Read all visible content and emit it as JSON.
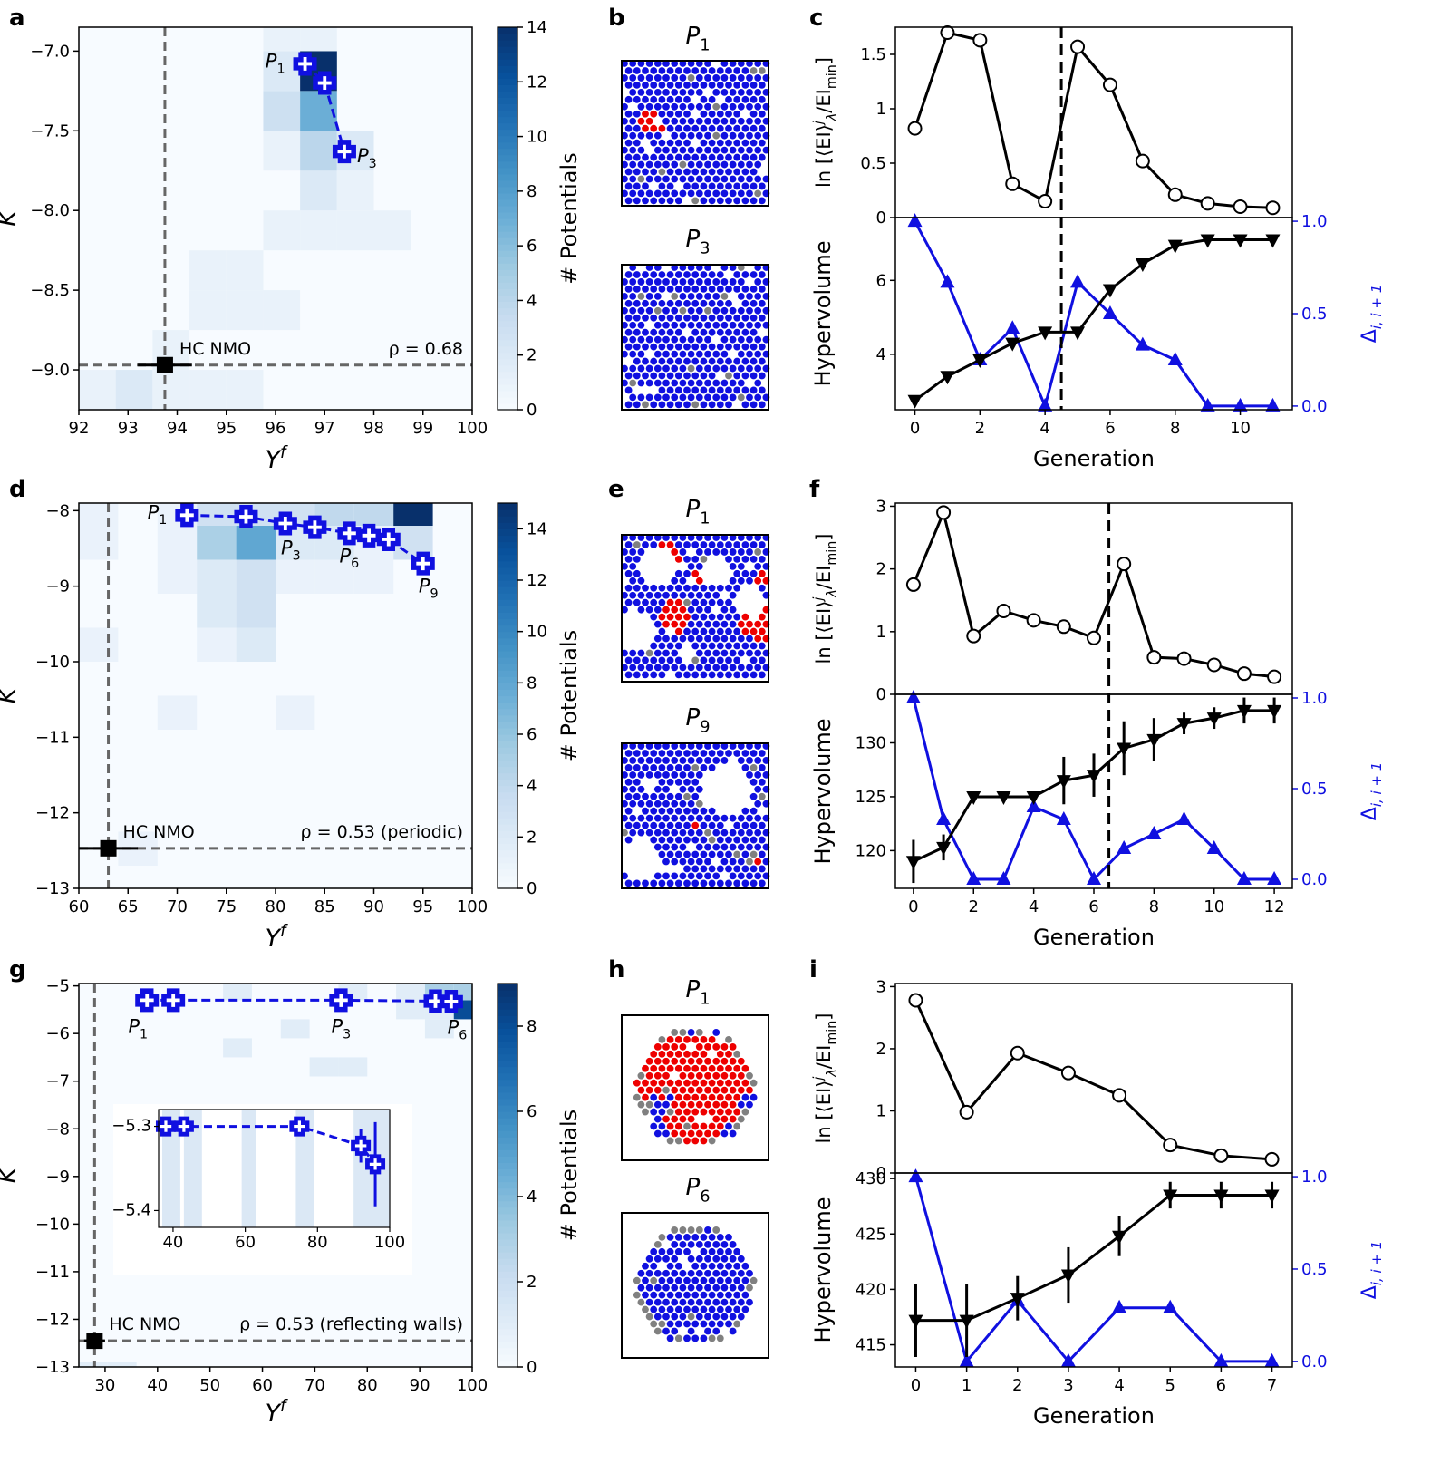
{
  "colors": {
    "blue": "#1010e0",
    "red": "#ee0000",
    "gray": "#808080",
    "black": "#000000",
    "cmap_low": "#f7fbff",
    "cmap_high": "#08306b"
  },
  "panel_letters": [
    "a",
    "b",
    "c",
    "d",
    "e",
    "f",
    "g",
    "h",
    "i"
  ],
  "chart_data": [
    {
      "panel": "a",
      "type": "heatmap",
      "xlabel": "Y^f",
      "ylabel": "K",
      "xlim": [
        92,
        100
      ],
      "ylim": [
        -9.25,
        -6.85
      ],
      "xticks": [
        92,
        93,
        94,
        95,
        96,
        97,
        98,
        99,
        100
      ],
      "yticks": [
        -9.0,
        -8.5,
        -8.0,
        -7.5,
        -7.0
      ],
      "ytick_labels": [
        "−9.0",
        "−8.5",
        "−8.0",
        "−7.5",
        "−7.0"
      ],
      "bins": {
        "x0": 92,
        "dx": 0.75,
        "y0": -9.25,
        "dy": 0.25
      },
      "cells": [
        [
          0,
          0,
          1
        ],
        [
          1,
          0,
          2
        ],
        [
          2,
          0,
          1
        ],
        [
          3,
          0,
          1
        ],
        [
          4,
          0,
          1
        ],
        [
          2,
          1,
          1
        ],
        [
          3,
          2,
          1
        ],
        [
          4,
          2,
          1
        ],
        [
          5,
          2,
          1
        ],
        [
          3,
          3,
          1
        ],
        [
          4,
          3,
          1
        ],
        [
          5,
          4,
          1
        ],
        [
          6,
          4,
          1
        ],
        [
          7,
          4,
          1
        ],
        [
          8,
          4,
          1
        ],
        [
          6,
          5,
          2
        ],
        [
          7,
          5,
          1
        ],
        [
          5,
          6,
          1
        ],
        [
          6,
          6,
          4
        ],
        [
          7,
          6,
          2
        ],
        [
          5,
          7,
          3
        ],
        [
          6,
          7,
          7
        ],
        [
          5,
          8,
          2
        ],
        [
          6,
          8,
          14
        ],
        [
          5,
          9,
          1
        ],
        [
          6,
          9,
          1
        ]
      ],
      "colorbar": {
        "min": 0,
        "max": 14,
        "ticks": [
          0,
          2,
          4,
          6,
          8,
          10,
          12,
          14
        ],
        "label": "# Potentials"
      },
      "path": {
        "x": [
          96.6,
          97.0,
          97.4
        ],
        "y": [
          -7.08,
          -7.2,
          -7.63
        ],
        "labels": [
          "P_1",
          "",
          "P_3"
        ]
      },
      "reference": {
        "label": "HC NMO",
        "x": 93.75,
        "y": -8.97,
        "xerr": 0.55
      },
      "rho_label": "ρ = 0.68"
    },
    {
      "panel": "c",
      "type": "line",
      "x": [
        0,
        1,
        2,
        3,
        4,
        5,
        6,
        7,
        8,
        9,
        10,
        11
      ],
      "top": {
        "ylabel": "ln [⟨EI⟩ʲλ/EI_min]",
        "ylim": [
          0,
          1.75
        ],
        "yticks": [
          0,
          0.5,
          1,
          1.5
        ],
        "ytick_labels": [
          "0",
          "0.5",
          "1",
          "1.5"
        ],
        "values": [
          0.82,
          1.7,
          1.63,
          0.31,
          0.15,
          1.57,
          1.22,
          0.52,
          0.21,
          0.13,
          0.1,
          0.09
        ]
      },
      "bottom": {
        "ylabel": "Hypervolume",
        "ylim": [
          2.5,
          7.7
        ],
        "yticks": [
          4,
          6
        ],
        "ytick_labels": [
          "4",
          "6"
        ],
        "hv": [
          2.75,
          3.4,
          3.85,
          4.3,
          4.6,
          4.6,
          5.75,
          6.45,
          6.95,
          7.1,
          7.1,
          7.1
        ],
        "hv_err": [
          0,
          0,
          0,
          0,
          0,
          0,
          0,
          0,
          0,
          0,
          0,
          0
        ],
        "delta_label": "Δ_{i,i+1}",
        "delta_ylim": [
          -0.02,
          1.02
        ],
        "delta_yticks": [
          0,
          0.5,
          1
        ],
        "delta_tick_labels": [
          "0.0",
          "0.5",
          "1.0"
        ],
        "delta": [
          1.0,
          0.67,
          0.25,
          0.42,
          0.0,
          0.67,
          0.5,
          0.33,
          0.25,
          0.0,
          0.0,
          0.0
        ]
      },
      "xticks": [
        0,
        2,
        4,
        6,
        8,
        10
      ],
      "xlim": [
        -0.6,
        11.6
      ],
      "vline": 4.5,
      "xlabel": "Generation"
    },
    {
      "panel": "d",
      "type": "heatmap",
      "xlabel": "Y^f",
      "ylabel": "K",
      "xlim": [
        60,
        100
      ],
      "ylim": [
        -13,
        -7.9
      ],
      "xticks": [
        60,
        65,
        70,
        75,
        80,
        85,
        90,
        95,
        100
      ],
      "yticks": [
        -13,
        -12,
        -11,
        -10,
        -9,
        -8
      ],
      "ytick_labels": [
        "−13",
        "−12",
        "−11",
        "−10",
        "−9",
        "−8"
      ],
      "bins": {
        "x0": 60,
        "dx": 4,
        "y0": -12.7,
        "dy": 0.45
      },
      "cells": [
        [
          1,
          0,
          1
        ],
        [
          2,
          4,
          1
        ],
        [
          5,
          4,
          1
        ],
        [
          0,
          6,
          1
        ],
        [
          3,
          6,
          1
        ],
        [
          4,
          6,
          2
        ],
        [
          3,
          7,
          2
        ],
        [
          4,
          7,
          3
        ],
        [
          2,
          8,
          1
        ],
        [
          3,
          8,
          2
        ],
        [
          4,
          8,
          3
        ],
        [
          5,
          8,
          1
        ],
        [
          6,
          8,
          1
        ],
        [
          7,
          8,
          1
        ],
        [
          0,
          9,
          1
        ],
        [
          2,
          9,
          1
        ],
        [
          3,
          9,
          5
        ],
        [
          4,
          9,
          8
        ],
        [
          5,
          9,
          2
        ],
        [
          6,
          9,
          2
        ],
        [
          7,
          9,
          1
        ],
        [
          8,
          9,
          3
        ],
        [
          0,
          10,
          1
        ],
        [
          2,
          10,
          1
        ],
        [
          3,
          10,
          3
        ],
        [
          4,
          10,
          3
        ],
        [
          5,
          10,
          3
        ],
        [
          6,
          10,
          4
        ],
        [
          7,
          10,
          4
        ],
        [
          8,
          10,
          15
        ],
        [
          2,
          11,
          1
        ],
        [
          3,
          11,
          1
        ],
        [
          4,
          11,
          1
        ],
        [
          5,
          11,
          1
        ],
        [
          6,
          11,
          1
        ],
        [
          7,
          11,
          1
        ],
        [
          8,
          11,
          1
        ]
      ],
      "colorbar": {
        "min": 0,
        "max": 15,
        "ticks": [
          0,
          2,
          4,
          6,
          8,
          10,
          12,
          14
        ],
        "label": "# Potentials"
      },
      "path": {
        "x": [
          71,
          77,
          81,
          84,
          87.5,
          89.5,
          91.5,
          95
        ],
        "y": [
          -8.06,
          -8.08,
          -8.17,
          -8.22,
          -8.3,
          -8.33,
          -8.38,
          -8.7
        ],
        "labels": [
          "P_1",
          "",
          "P_3",
          "",
          "P_6",
          "",
          "",
          "P_9"
        ]
      },
      "reference": {
        "label": "HC NMO",
        "x": 63,
        "y": -12.47,
        "xerr": 3
      },
      "rho_label": "ρ = 0.53 (periodic)"
    },
    {
      "panel": "f",
      "type": "line",
      "x": [
        0,
        1,
        2,
        3,
        4,
        5,
        6,
        7,
        8,
        9,
        10,
        11,
        12
      ],
      "top": {
        "ylabel": "ln [⟨EI⟩ʲλ/EI_min]",
        "ylim": [
          0,
          3.05
        ],
        "yticks": [
          0,
          1,
          2,
          3
        ],
        "ytick_labels": [
          "0",
          "1",
          "2",
          "3"
        ],
        "values": [
          1.75,
          2.9,
          0.93,
          1.33,
          1.18,
          1.08,
          0.9,
          2.08,
          0.59,
          0.57,
          0.47,
          0.33,
          0.28
        ]
      },
      "bottom": {
        "ylabel": "Hypervolume",
        "ylim": [
          116.5,
          134.5
        ],
        "yticks": [
          120,
          125,
          130
        ],
        "ytick_labels": [
          "120",
          "125",
          "130"
        ],
        "hv": [
          119,
          120.3,
          125,
          125,
          125,
          126.5,
          127,
          129.5,
          130.3,
          131.8,
          132.3,
          133,
          133
        ],
        "hv_err": [
          2,
          1.2,
          0,
          0,
          0,
          2.2,
          2,
          2.5,
          2,
          1,
          1,
          1.2,
          1.2
        ],
        "delta_label": "Δ_{i,i+1}",
        "delta_ylim": [
          -0.05,
          1.02
        ],
        "delta_yticks": [
          0,
          0.5,
          1
        ],
        "delta_tick_labels": [
          "0.0",
          "0.5",
          "1.0"
        ],
        "delta": [
          1.0,
          0.33,
          0.0,
          0.0,
          0.4,
          0.33,
          0.0,
          0.17,
          0.25,
          0.33,
          0.17,
          0.0,
          0.0
        ]
      },
      "xticks": [
        0,
        2,
        4,
        6,
        8,
        10,
        12
      ],
      "xlim": [
        -0.6,
        12.6
      ],
      "vline": 6.5,
      "xlabel": "Generation"
    },
    {
      "panel": "g",
      "type": "heatmap",
      "xlabel": "Y^f",
      "ylabel": "K",
      "xlim": [
        25,
        100
      ],
      "ylim": [
        -13,
        -4.95
      ],
      "xticks": [
        30,
        40,
        50,
        60,
        70,
        80,
        90,
        100
      ],
      "yticks": [
        -13,
        -12,
        -11,
        -10,
        -9,
        -8,
        -7,
        -6,
        -5
      ],
      "ytick_labels": [
        "−13",
        "−12",
        "−11",
        "−10",
        "−9",
        "−8",
        "−7",
        "−6",
        "−5"
      ],
      "bins": {
        "x0": 25,
        "dx": 5.5,
        "y0": -13.3,
        "dy": 0.4
      },
      "cells": [
        [
          0,
          0,
          1
        ],
        [
          1,
          0,
          1
        ],
        [
          8,
          16,
          1
        ],
        [
          9,
          16,
          1
        ],
        [
          5,
          17,
          1
        ],
        [
          7,
          18,
          1
        ],
        [
          12,
          18,
          1
        ],
        [
          11,
          19,
          1
        ],
        [
          12,
          19,
          1
        ],
        [
          13,
          19,
          8
        ],
        [
          14,
          19,
          5
        ],
        [
          5,
          20,
          1
        ],
        [
          9,
          20,
          1
        ],
        [
          11,
          20,
          1
        ],
        [
          12,
          20,
          3
        ],
        [
          13,
          20,
          3
        ],
        [
          14,
          20,
          7
        ]
      ],
      "colorbar": {
        "min": 0,
        "max": 9,
        "ticks": [
          0,
          2,
          4,
          6,
          8
        ],
        "label": "# Potentials"
      },
      "path": {
        "x": [
          38,
          43,
          75,
          93,
          96
        ],
        "y": [
          -5.3,
          -5.3,
          -5.3,
          -5.32,
          -5.33
        ],
        "labels": [
          "P_1",
          "",
          "P_3",
          "P_6",
          ""
        ]
      },
      "reference": {
        "label": "HC NMO",
        "x": 28,
        "y": -12.45,
        "xerr": 2
      },
      "rho_label": "ρ = 0.53 (reflecting walls)",
      "inset": {
        "xlim": [
          36,
          100
        ],
        "ylim": [
          -5.42,
          -5.28
        ],
        "xticks": [
          40,
          60,
          80,
          100
        ],
        "yticks": [
          -5.3,
          -5.4
        ],
        "ytick_labels": [
          "−5.3",
          "−5.4"
        ],
        "path": {
          "x": [
            38,
            43,
            75,
            92,
            96
          ],
          "y": [
            -5.3,
            -5.3,
            -5.3,
            -5.323,
            -5.345
          ],
          "yerr": [
            0,
            0,
            0,
            0.02,
            0.05
          ]
        },
        "bars": [
          [
            37,
            42
          ],
          [
            43,
            48
          ],
          [
            59,
            63
          ],
          [
            74,
            79
          ],
          [
            90,
            95
          ],
          [
            95,
            100
          ]
        ]
      }
    },
    {
      "panel": "i",
      "type": "line",
      "x": [
        0,
        1,
        2,
        3,
        4,
        5,
        6,
        7
      ],
      "top": {
        "ylabel": "ln [⟨EI⟩ʲλ/EI_min]",
        "ylim": [
          0,
          3.05
        ],
        "yticks": [
          0,
          1,
          2,
          3
        ],
        "ytick_labels": [
          "0",
          "1",
          "2",
          "3"
        ],
        "values": [
          2.78,
          0.98,
          1.93,
          1.61,
          1.25,
          0.45,
          0.28,
          0.22
        ]
      },
      "bottom": {
        "ylabel": "Hypervolume",
        "ylim": [
          413,
          430.5
        ],
        "yticks": [
          415,
          420,
          425,
          430
        ],
        "ytick_labels": [
          "415",
          "420",
          "425",
          "430"
        ],
        "hv": [
          417.2,
          417.2,
          419.2,
          421.3,
          424.8,
          428.5,
          428.5,
          428.5
        ],
        "hv_err": [
          3.3,
          3.3,
          2,
          2.5,
          1.8,
          1.2,
          1.2,
          1.2
        ],
        "delta_label": "Δ_{i,i+1}",
        "delta_ylim": [
          -0.03,
          1.02
        ],
        "delta_yticks": [
          0,
          0.5,
          1
        ],
        "delta_tick_labels": [
          "0.0",
          "0.5",
          "1.0"
        ],
        "delta": [
          1.0,
          0.0,
          0.33,
          0.0,
          0.29,
          0.29,
          0.0,
          0.0
        ]
      },
      "xticks": [
        0,
        1,
        2,
        3,
        4,
        5,
        6,
        7
      ],
      "xlim": [
        -0.4,
        7.4
      ],
      "vline": null,
      "xlabel": "Generation"
    }
  ],
  "snapshots": {
    "b": [
      {
        "title": "P_1",
        "shape": "square",
        "red": [
          [
            0.2,
            0.58,
            0.09
          ]
        ],
        "holes": []
      },
      {
        "title": "P_3",
        "shape": "square",
        "red": [],
        "holes": []
      }
    ],
    "e": [
      {
        "title": "P_1",
        "shape": "square",
        "red": [
          [
            0.3,
            0.85,
            0.1
          ],
          [
            0.35,
            0.45,
            0.11
          ],
          [
            0.92,
            0.38,
            0.12
          ],
          [
            0.97,
            0.7,
            0.07
          ],
          [
            0.5,
            0.7,
            0.05
          ]
        ],
        "holes": [
          [
            0.1,
            0.35,
            0.13
          ],
          [
            0.25,
            0.78,
            0.12
          ],
          [
            0.65,
            0.75,
            0.1
          ],
          [
            0.87,
            0.55,
            0.1
          ],
          [
            0.45,
            0.2,
            0.06
          ]
        ]
      },
      {
        "title": "P_9",
        "shape": "square",
        "red": [
          [
            0.5,
            0.42,
            0.03
          ],
          [
            0.9,
            0.2,
            0.04
          ]
        ],
        "holes": [
          [
            0.72,
            0.68,
            0.18
          ],
          [
            0.12,
            0.2,
            0.14
          ],
          [
            0.18,
            0.72,
            0.05
          ]
        ]
      }
    ],
    "h": [
      {
        "title": "P_1",
        "shape": "disc",
        "red": [
          [
            0.3,
            0.65,
            0.25
          ],
          [
            0.62,
            0.55,
            0.3
          ],
          [
            0.5,
            0.25,
            0.2
          ],
          [
            0.78,
            0.75,
            0.14
          ]
        ],
        "holes": []
      },
      {
        "title": "P_6",
        "shape": "disc",
        "red": [],
        "holes": []
      }
    ]
  },
  "text": {
    "hc_nmo": "HC NMO",
    "potentials": "# Potentials",
    "generation": "Generation",
    "hypervolume": "Hypervolume"
  }
}
